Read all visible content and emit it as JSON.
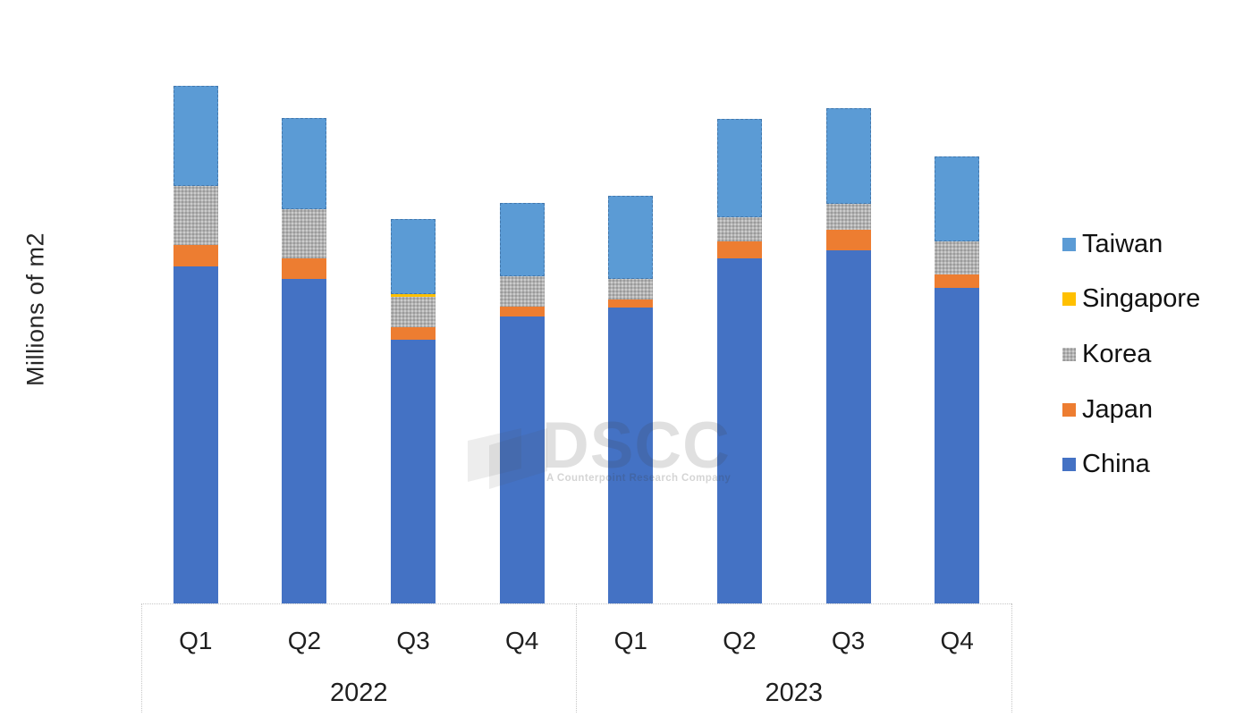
{
  "y_axis": {
    "label": "Millions of m2"
  },
  "x_axis": {
    "groups": [
      {
        "year": "2022",
        "quarters": [
          "Q1",
          "Q2",
          "Q3",
          "Q4"
        ]
      },
      {
        "year": "2023",
        "quarters": [
          "Q1",
          "Q2",
          "Q3",
          "Q4"
        ]
      }
    ]
  },
  "legend": {
    "position": "right",
    "items": [
      {
        "label": "Taiwan",
        "color": "#5B9BD5",
        "pattern": "solid"
      },
      {
        "label": "Singapore",
        "color": "#FFC000",
        "pattern": "solid"
      },
      {
        "label": "Korea",
        "color": "#A6A6A6",
        "pattern": "dotted"
      },
      {
        "label": "Japan",
        "color": "#ED7D31",
        "pattern": "solid"
      },
      {
        "label": "China",
        "color": "#4472C4",
        "pattern": "solid"
      }
    ]
  },
  "watermark": {
    "text": "DSCC",
    "tagline": "A Counterpoint Research Company"
  },
  "chart_data": {
    "type": "bar",
    "stacked": true,
    "title": "",
    "xlabel": "",
    "ylabel": "Millions of m2",
    "ylim": [
      0,
      100
    ],
    "y_tick_labels_visible": false,
    "grid": false,
    "legend_position": "right",
    "categories": [
      "Q1 2022",
      "Q2 2022",
      "Q3 2022",
      "Q4 2022",
      "Q1 2023",
      "Q2 2023",
      "Q3 2023",
      "Q4 2023"
    ],
    "units_note": "relative units estimated from bar heights; no numeric y-axis tick labels are shown in the chart",
    "series": [
      {
        "name": "China",
        "color": "#4472C4",
        "values": [
          63.9,
          61.6,
          50.0,
          54.4,
          56.1,
          65.4,
          66.9,
          59.8
        ]
      },
      {
        "name": "Japan",
        "color": "#ED7D31",
        "values": [
          4.1,
          3.8,
          2.3,
          1.9,
          1.6,
          3.2,
          4.0,
          2.6
        ]
      },
      {
        "name": "Korea",
        "color": "#A6A6A6",
        "values": [
          11.2,
          9.3,
          5.9,
          5.7,
          3.9,
          4.7,
          4.9,
          6.3
        ]
      },
      {
        "name": "Singapore",
        "color": "#FFC000",
        "values": [
          0,
          0,
          0.5,
          0,
          0,
          0,
          0,
          0
        ]
      },
      {
        "name": "Taiwan",
        "color": "#5B9BD5",
        "values": [
          19.0,
          17.4,
          14.1,
          13.9,
          15.7,
          18.5,
          18.1,
          16.1
        ]
      }
    ],
    "stack_order_bottom_to_top": [
      "China",
      "Japan",
      "Korea",
      "Singapore",
      "Taiwan"
    ]
  }
}
